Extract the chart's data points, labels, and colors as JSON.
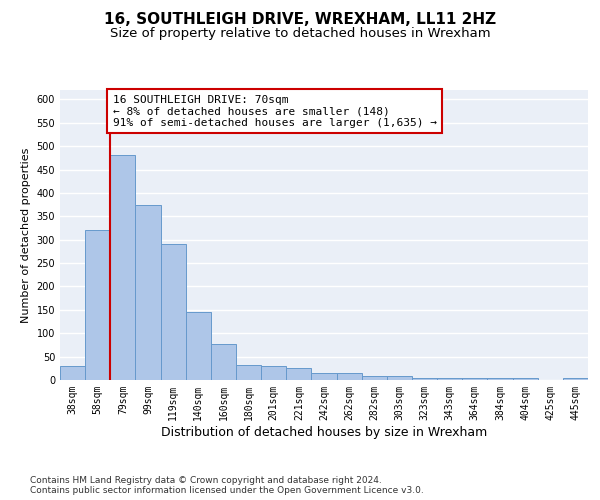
{
  "title": "16, SOUTHLEIGH DRIVE, WREXHAM, LL11 2HZ",
  "subtitle": "Size of property relative to detached houses in Wrexham",
  "xlabel": "Distribution of detached houses by size in Wrexham",
  "ylabel": "Number of detached properties",
  "categories": [
    "38sqm",
    "58sqm",
    "79sqm",
    "99sqm",
    "119sqm",
    "140sqm",
    "160sqm",
    "180sqm",
    "201sqm",
    "221sqm",
    "242sqm",
    "262sqm",
    "282sqm",
    "303sqm",
    "323sqm",
    "343sqm",
    "364sqm",
    "384sqm",
    "404sqm",
    "425sqm",
    "445sqm"
  ],
  "values": [
    30,
    320,
    480,
    375,
    290,
    145,
    77,
    32,
    29,
    26,
    16,
    16,
    8,
    8,
    5,
    5,
    5,
    5,
    5,
    0,
    5
  ],
  "bar_color": "#aec6e8",
  "bar_edge_color": "#6699cc",
  "annotation_text": "16 SOUTHLEIGH DRIVE: 70sqm\n← 8% of detached houses are smaller (148)\n91% of semi-detached houses are larger (1,635) →",
  "annotation_box_color": "#ffffff",
  "annotation_box_edge": "#cc0000",
  "vline_color": "#cc0000",
  "ylim": [
    0,
    620
  ],
  "yticks": [
    0,
    50,
    100,
    150,
    200,
    250,
    300,
    350,
    400,
    450,
    500,
    550,
    600
  ],
  "footer1": "Contains HM Land Registry data © Crown copyright and database right 2024.",
  "footer2": "Contains public sector information licensed under the Open Government Licence v3.0.",
  "bg_color": "#ffffff",
  "plot_bg_color": "#eaeff7",
  "grid_color": "#ffffff",
  "title_fontsize": 11,
  "subtitle_fontsize": 9.5,
  "xlabel_fontsize": 9,
  "ylabel_fontsize": 8,
  "tick_fontsize": 7,
  "footer_fontsize": 6.5,
  "annot_fontsize": 8
}
